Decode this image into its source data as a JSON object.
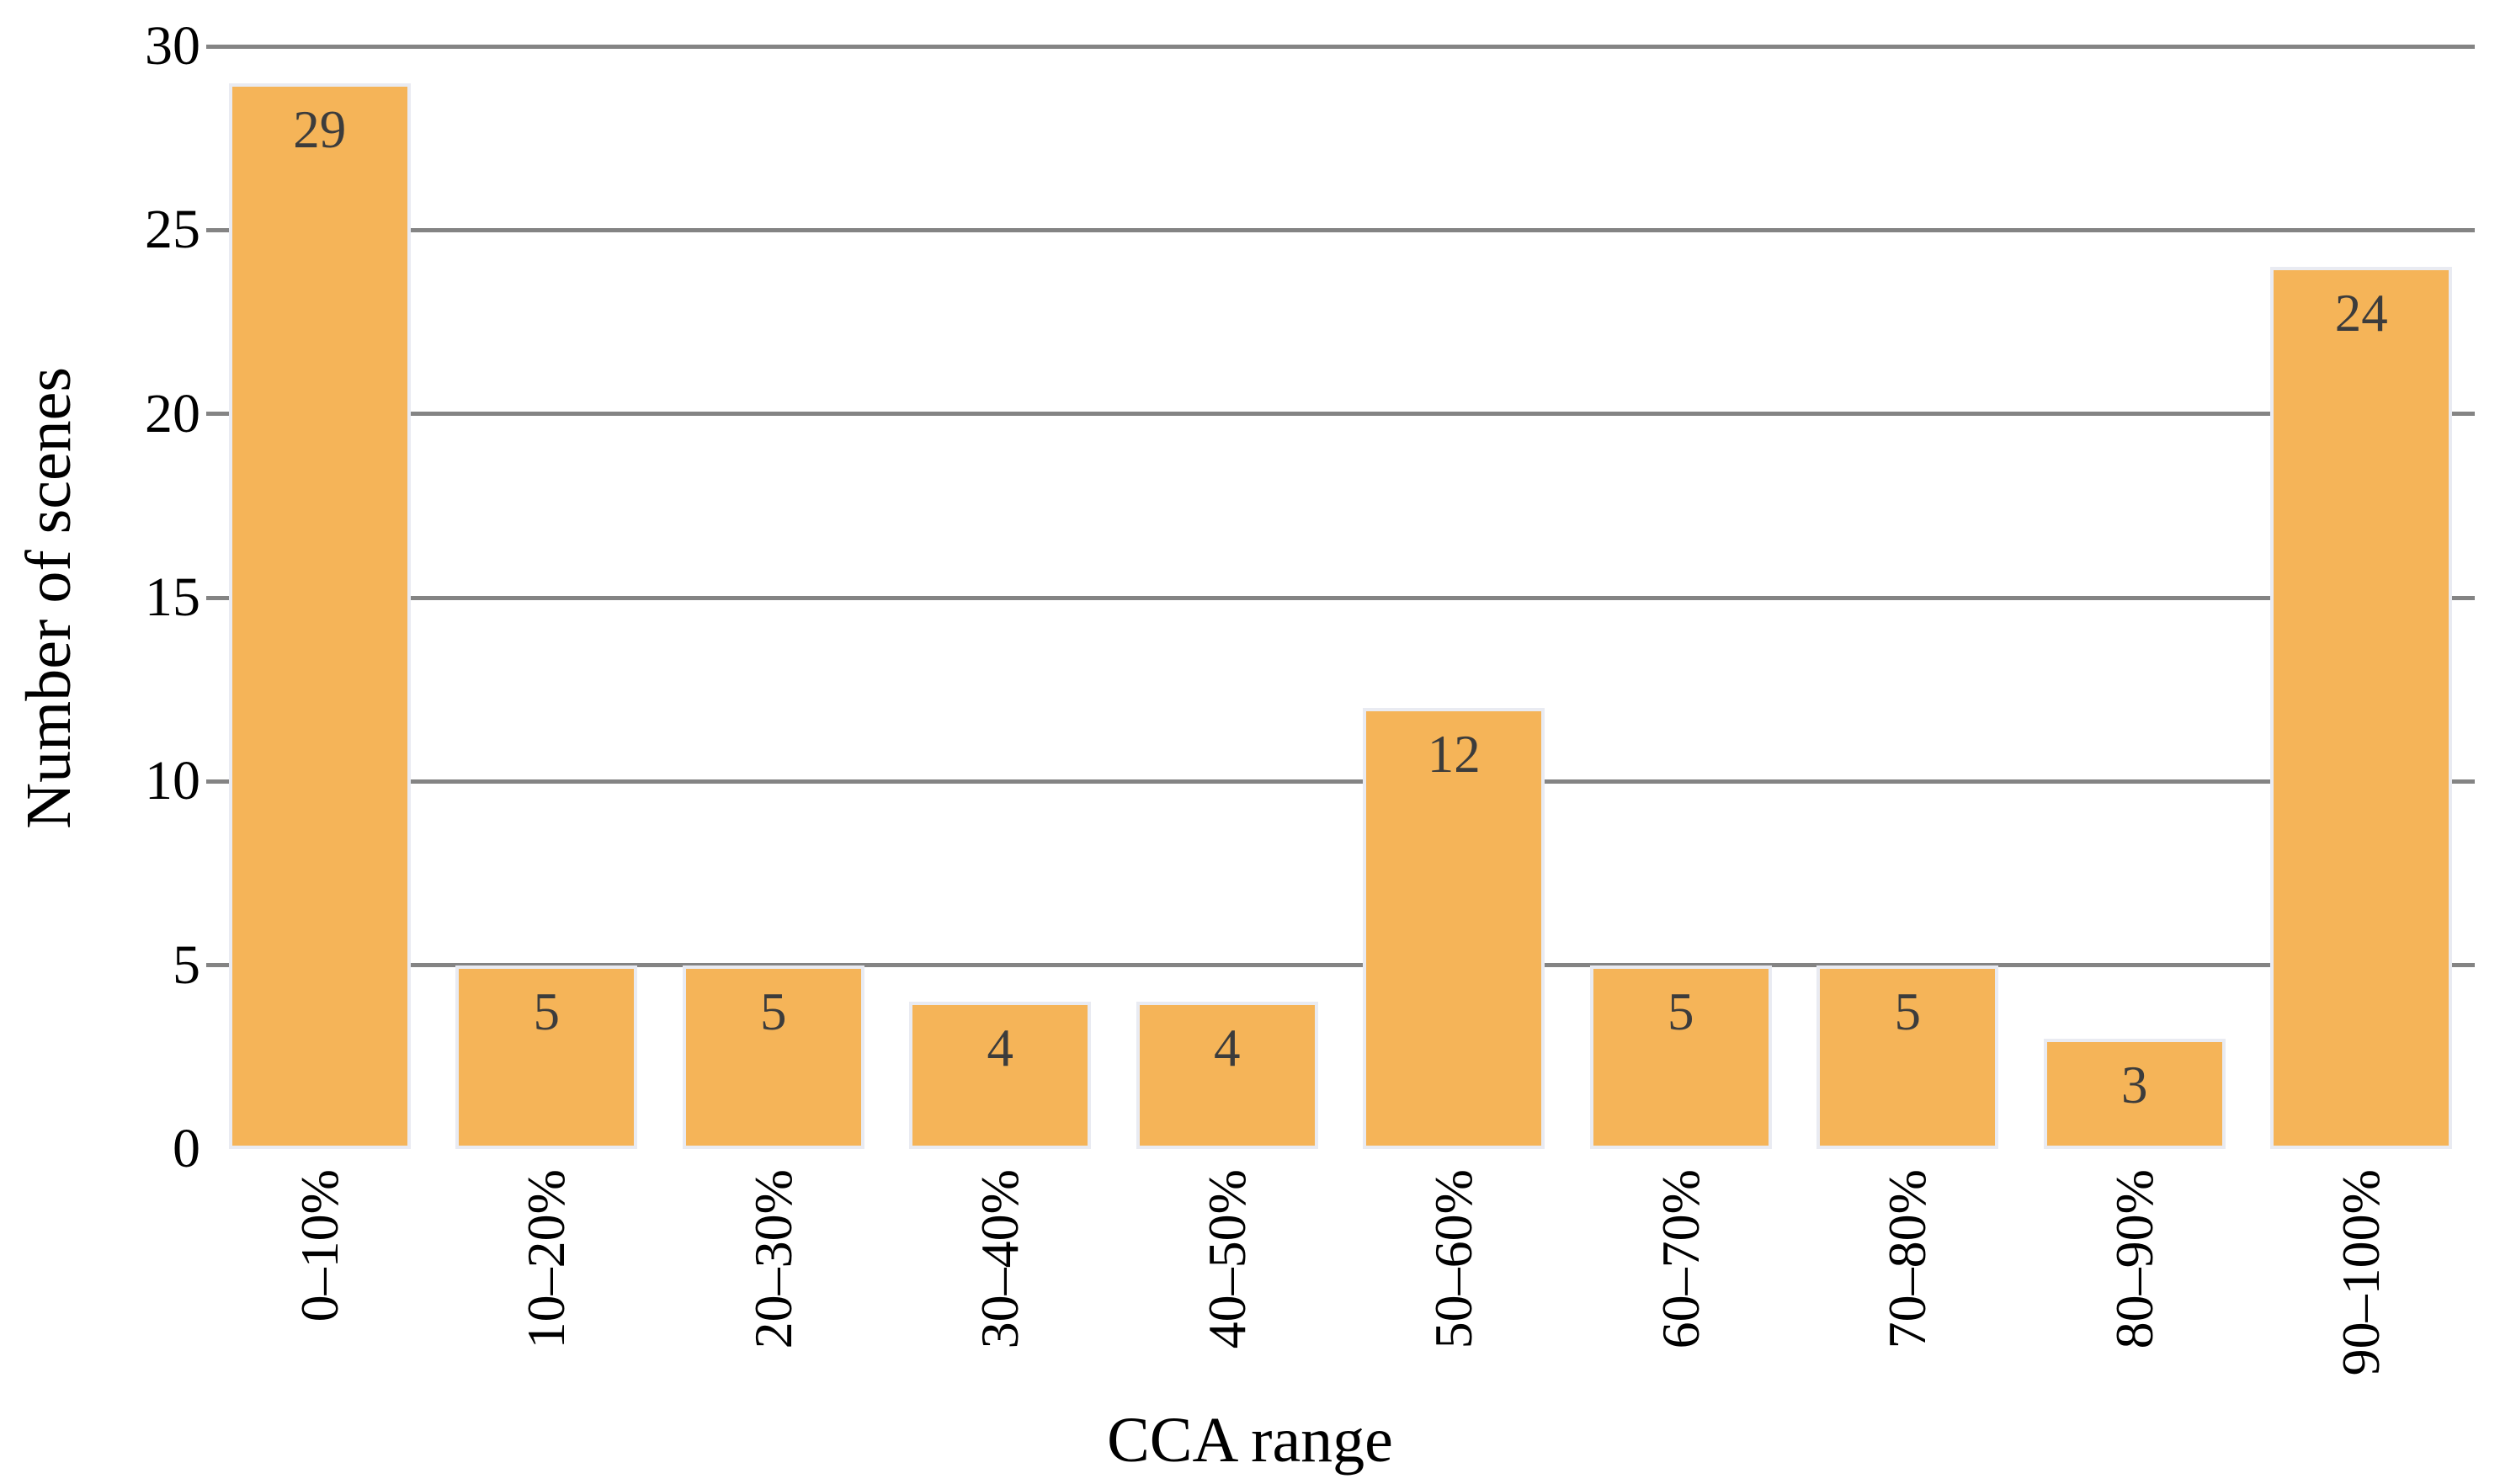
{
  "chart_data": {
    "type": "bar",
    "categories": [
      "0–10%",
      "10–20%",
      "20–30%",
      "30–40%",
      "40–50%",
      "50–60%",
      "60–70%",
      "70–80%",
      "80–90%",
      "90–100%"
    ],
    "values": [
      29,
      5,
      5,
      4,
      4,
      12,
      5,
      5,
      3,
      24
    ],
    "bar_value_labels": [
      "29",
      "5",
      "5",
      "4",
      "4",
      "12",
      "5",
      "5",
      "3",
      "24"
    ],
    "title": "",
    "xlabel": "CCA range",
    "ylabel": "Number of scenes",
    "ylim": [
      0,
      30
    ],
    "yticks": [
      0,
      5,
      10,
      15,
      20,
      25,
      30
    ],
    "ytick_labels": [
      "0",
      "5",
      "10",
      "15",
      "20",
      "25",
      "30"
    ],
    "grid": "horizontal",
    "legend": "none",
    "colors": {
      "bar_fill": "#F5B458",
      "bar_edge": "#E9EBF2",
      "gridline": "#848484",
      "bar_value_text": "#3C3C3C",
      "tick_text": "#000000",
      "axis_title_text": "#000000",
      "background": "#FFFFFF"
    }
  }
}
